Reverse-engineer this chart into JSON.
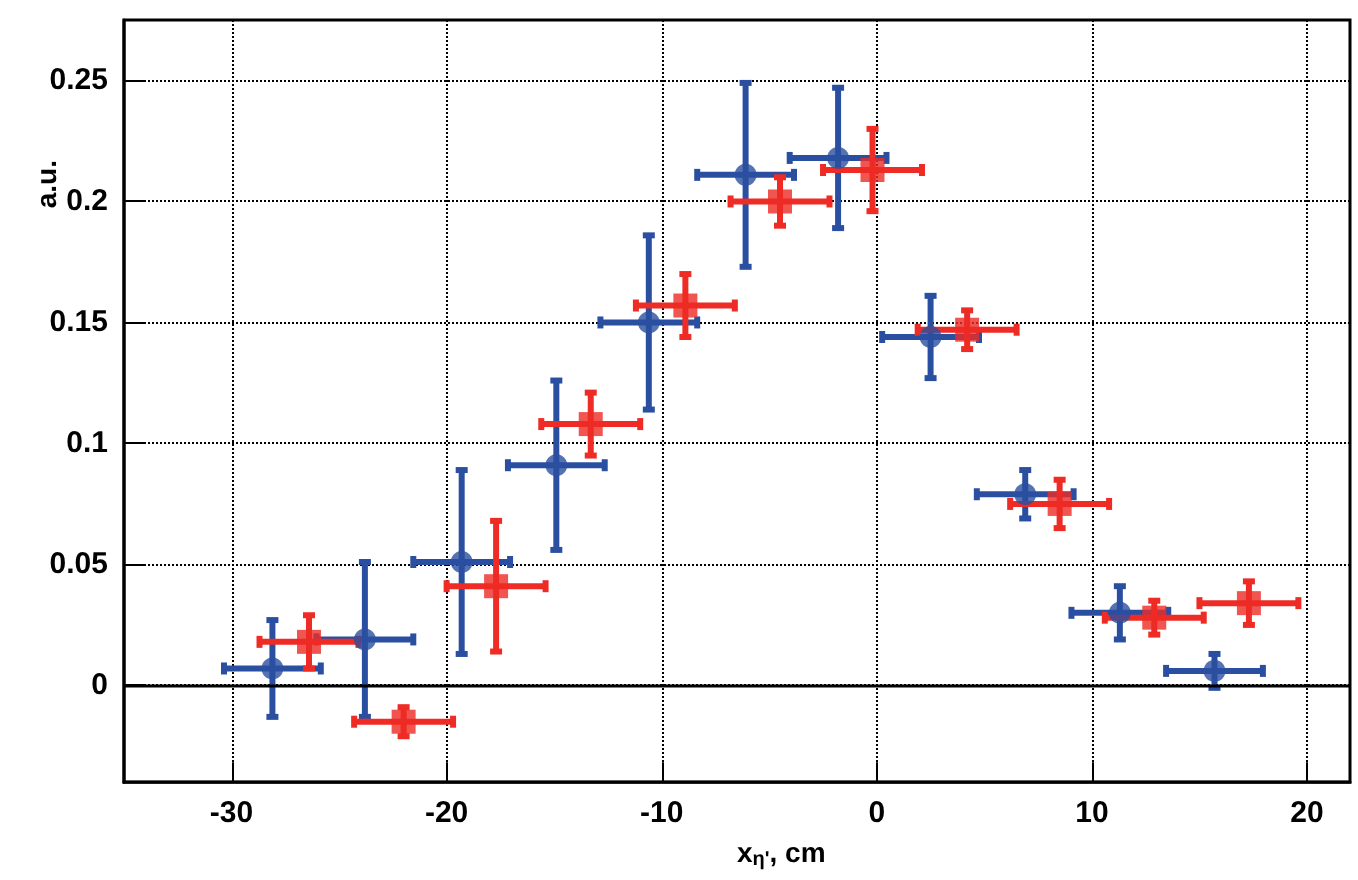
{
  "chart_data": {
    "type": "scatter",
    "xlabel": "x$_{η'}$, cm",
    "ylabel": "a.u.",
    "xlim": [
      -35,
      22
    ],
    "xticks": [
      -30,
      -20,
      -10,
      0,
      10,
      20
    ],
    "ylim": [
      -0.04,
      0.275
    ],
    "yticks": [
      0,
      0.05,
      0.1,
      0.15,
      0.2,
      0.25
    ],
    "grid": true,
    "ref_lines": [
      {
        "axis": "y",
        "value": 0,
        "color": "#000000",
        "line_style": "solid"
      }
    ],
    "series": [
      {
        "color": "#2b4fa0",
        "marker": "circle",
        "x": [
          -28.1,
          -23.8,
          -19.3,
          -14.9,
          -10.6,
          -6.1,
          -1.8,
          2.5,
          6.9,
          11.3,
          15.7
        ],
        "values": [
          0.007,
          0.019,
          0.051,
          0.091,
          0.15,
          0.211,
          0.218,
          0.144,
          0.079,
          0.03,
          0.006
        ],
        "errors": [
          0.02,
          0.032,
          0.038,
          0.035,
          0.036,
          0.038,
          0.029,
          0.017,
          0.01,
          0.011,
          0.007
        ],
        "xerrors": [
          2.25,
          2.25,
          2.25,
          2.25,
          2.25,
          2.25,
          2.25,
          2.25,
          2.25,
          2.25,
          2.25
        ]
      },
      {
        "color": "#ee2b24",
        "marker": "square",
        "x": [
          -26.4,
          -22.0,
          -17.7,
          -13.3,
          -8.9,
          -4.5,
          -0.2,
          4.2,
          8.5,
          12.9,
          17.3
        ],
        "values": [
          0.018,
          -0.015,
          0.041,
          0.108,
          0.157,
          0.2,
          0.213,
          0.147,
          0.075,
          0.028,
          0.034
        ],
        "errors": [
          0.011,
          0.006,
          0.027,
          0.013,
          0.013,
          0.01,
          0.017,
          0.008,
          0.01,
          0.007,
          0.009
        ],
        "xerrors": [
          2.3,
          2.3,
          2.3,
          2.3,
          2.3,
          2.3,
          2.3,
          2.3,
          2.3,
          2.3,
          2.3
        ]
      }
    ]
  }
}
